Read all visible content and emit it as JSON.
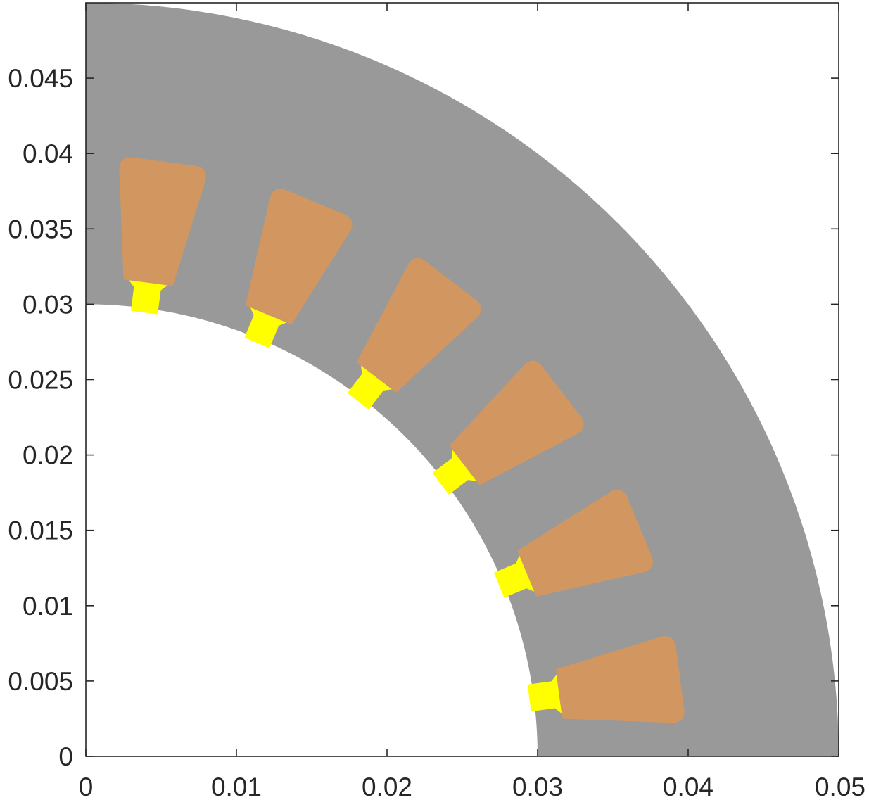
{
  "chart_data": {
    "type": "other",
    "subtype": "geometry-cross-section",
    "title": "",
    "xlabel": "",
    "ylabel": "",
    "xlim": [
      0,
      0.05
    ],
    "ylim": [
      0,
      0.05
    ],
    "grid": false,
    "box": true,
    "xticks": [
      0,
      0.01,
      0.02,
      0.03,
      0.04,
      0.05
    ],
    "xtick_labels": [
      "0",
      "0.01",
      "0.02",
      "0.03",
      "0.04",
      "0.05"
    ],
    "yticks": [
      0,
      0.005,
      0.01,
      0.015,
      0.02,
      0.025,
      0.03,
      0.035,
      0.04,
      0.045
    ],
    "ytick_labels": [
      "0",
      "0.005",
      "0.01",
      "0.015",
      "0.02",
      "0.025",
      "0.03",
      "0.035",
      "0.04",
      "0.045"
    ],
    "stator_region": {
      "inner_radius": 0.03,
      "outer_radius": 0.05,
      "start_angle_deg": 0,
      "end_angle_deg": 90,
      "color": "#999999"
    },
    "slots": {
      "count": 6,
      "angles_deg": [
        7.5,
        22.5,
        37.5,
        52.5,
        67.5,
        82.5
      ],
      "winding_color": "#d29761",
      "opening_color": "#ffff00",
      "opening_radial_extent": [
        0.0297,
        0.0317
      ],
      "opening_width": [
        0.0018,
        0.0026
      ],
      "winding_radial_extent": [
        0.0317,
        0.0398
      ],
      "winding_width": [
        0.0033,
        0.0058
      ]
    }
  }
}
